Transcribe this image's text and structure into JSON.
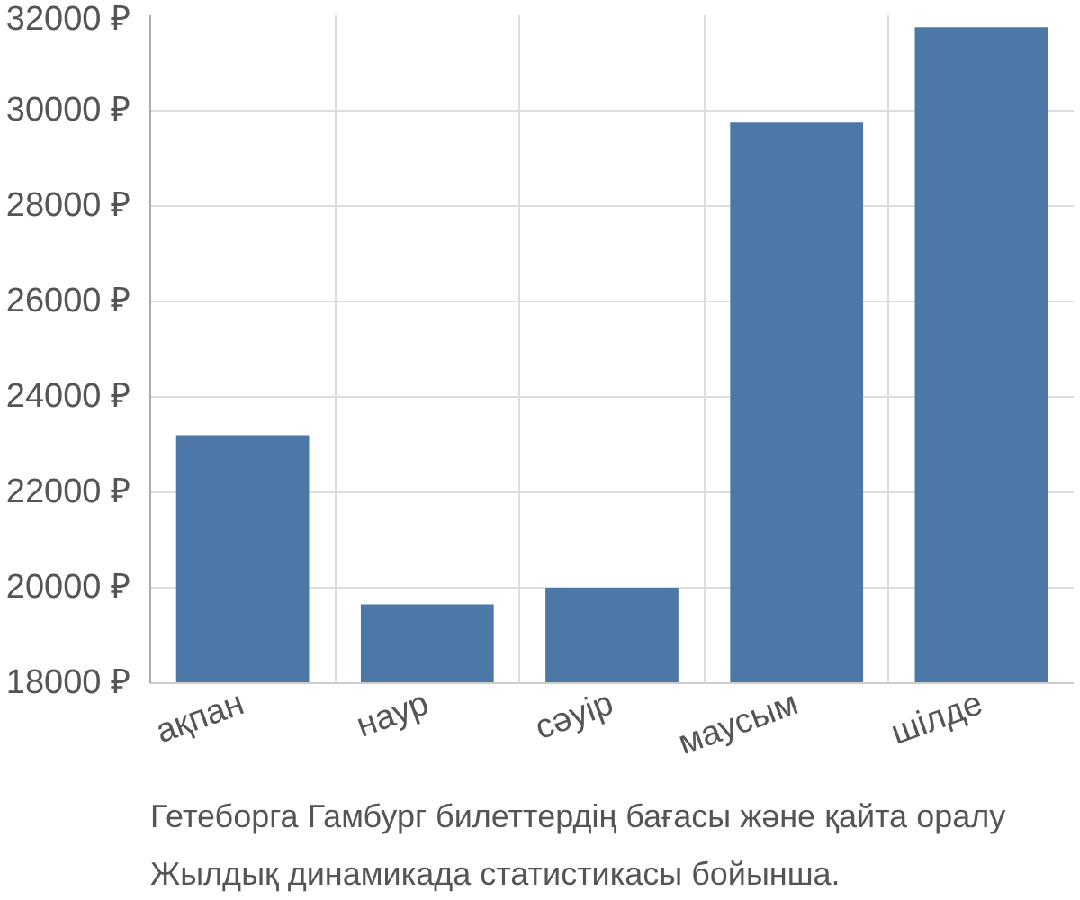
{
  "chart_data": {
    "type": "bar",
    "categories": [
      "ақпан",
      "наур",
      "сәуір",
      "маусым",
      "шілде"
    ],
    "values": [
      23200,
      19650,
      20000,
      29750,
      31750
    ],
    "color": "#4c78a8",
    "ylim": [
      18000,
      32000
    ],
    "yticks": [
      {
        "value": 18000,
        "label": "18000 ₽"
      },
      {
        "value": 20000,
        "label": "20000 ₽"
      },
      {
        "value": 22000,
        "label": "22000 ₽"
      },
      {
        "value": 24000,
        "label": "24000 ₽"
      },
      {
        "value": 26000,
        "label": "26000 ₽"
      },
      {
        "value": 28000,
        "label": "28000 ₽"
      },
      {
        "value": 30000,
        "label": "30000 ₽"
      },
      {
        "value": 32000,
        "label": "32000 ₽"
      }
    ],
    "grid": true,
    "annotations": [
      "Гетеборга Гамбург билеттердің бағасы және қайта оралу",
      "Жылдық динамикада статистикасы бойынша."
    ]
  }
}
